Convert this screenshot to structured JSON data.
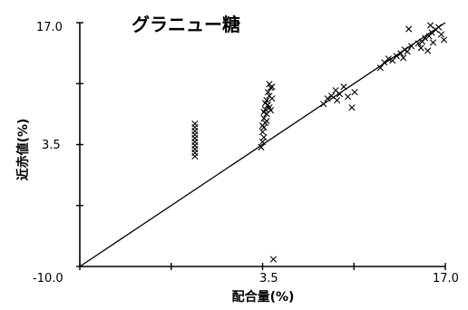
{
  "chart_data": {
    "type": "scatter",
    "title": "グラニュー糖",
    "xlabel": "配合量(%)",
    "ylabel": "近赤値(%)",
    "xlim": [
      -10.0,
      17.0
    ],
    "ylim": [
      -10.0,
      17.0
    ],
    "x_tick_labels": [
      "-10.0",
      "3.5",
      "17.0"
    ],
    "y_tick_labels": [
      "17.0",
      "3.5"
    ],
    "grid": false,
    "marker": "x",
    "reference_line": {
      "from": [
        -10.0,
        -10.0
      ],
      "to": [
        17.0,
        17.0
      ]
    },
    "points": [
      {
        "x": -1.5,
        "y": 2.2
      },
      {
        "x": -1.5,
        "y": 2.6
      },
      {
        "x": -1.5,
        "y": 3.0
      },
      {
        "x": -1.5,
        "y": 3.4
      },
      {
        "x": -1.5,
        "y": 3.8
      },
      {
        "x": -1.5,
        "y": 4.2
      },
      {
        "x": -1.5,
        "y": 4.6
      },
      {
        "x": -1.5,
        "y": 5.0
      },
      {
        "x": -1.5,
        "y": 5.4
      },
      {
        "x": -1.5,
        "y": 5.8
      },
      {
        "x": 3.4,
        "y": 3.2
      },
      {
        "x": 3.5,
        "y": 3.8
      },
      {
        "x": 3.6,
        "y": 4.3
      },
      {
        "x": 3.5,
        "y": 4.9
      },
      {
        "x": 3.6,
        "y": 5.4
      },
      {
        "x": 3.7,
        "y": 5.9
      },
      {
        "x": 3.6,
        "y": 6.4
      },
      {
        "x": 3.8,
        "y": 6.9
      },
      {
        "x": 3.7,
        "y": 7.4
      },
      {
        "x": 3.9,
        "y": 7.9
      },
      {
        "x": 3.8,
        "y": 8.4
      },
      {
        "x": 4.0,
        "y": 8.9
      },
      {
        "x": 3.9,
        "y": 9.3
      },
      {
        "x": 4.1,
        "y": 9.8
      },
      {
        "x": 4.0,
        "y": 10.2
      },
      {
        "x": 3.6,
        "y": 7.1
      },
      {
        "x": 3.8,
        "y": 6.1
      },
      {
        "x": 4.0,
        "y": 7.6
      },
      {
        "x": 3.5,
        "y": 5.6
      },
      {
        "x": 4.2,
        "y": 8.6
      },
      {
        "x": 4.2,
        "y": 9.9
      },
      {
        "x": 3.7,
        "y": 8.1
      },
      {
        "x": 4.1,
        "y": 7.3
      },
      {
        "x": 4.3,
        "y": -9.2
      },
      {
        "x": 8.0,
        "y": 8.0
      },
      {
        "x": 8.3,
        "y": 8.6
      },
      {
        "x": 8.6,
        "y": 8.9
      },
      {
        "x": 8.9,
        "y": 9.5
      },
      {
        "x": 9.2,
        "y": 9.1
      },
      {
        "x": 9.5,
        "y": 9.9
      },
      {
        "x": 9.0,
        "y": 8.4
      },
      {
        "x": 9.8,
        "y": 8.8
      },
      {
        "x": 10.1,
        "y": 7.6
      },
      {
        "x": 10.3,
        "y": 9.3
      },
      {
        "x": 12.2,
        "y": 12.0
      },
      {
        "x": 12.5,
        "y": 12.6
      },
      {
        "x": 12.8,
        "y": 13.0
      },
      {
        "x": 13.1,
        "y": 12.8
      },
      {
        "x": 13.4,
        "y": 13.3
      },
      {
        "x": 13.7,
        "y": 13.6
      },
      {
        "x": 14.0,
        "y": 14.0
      },
      {
        "x": 14.2,
        "y": 13.8
      },
      {
        "x": 14.5,
        "y": 14.4
      },
      {
        "x": 14.3,
        "y": 16.3
      },
      {
        "x": 13.9,
        "y": 13.1
      },
      {
        "x": 15.0,
        "y": 14.7
      },
      {
        "x": 15.3,
        "y": 14.9
      },
      {
        "x": 15.5,
        "y": 15.3
      },
      {
        "x": 15.8,
        "y": 15.5
      },
      {
        "x": 16.0,
        "y": 15.9
      },
      {
        "x": 16.3,
        "y": 16.2
      },
      {
        "x": 16.5,
        "y": 16.5
      },
      {
        "x": 15.2,
        "y": 14.2
      },
      {
        "x": 16.1,
        "y": 14.8
      },
      {
        "x": 16.7,
        "y": 15.7
      },
      {
        "x": 15.7,
        "y": 13.9
      },
      {
        "x": 16.9,
        "y": 15.1
      },
      {
        "x": 15.9,
        "y": 16.7
      }
    ]
  }
}
